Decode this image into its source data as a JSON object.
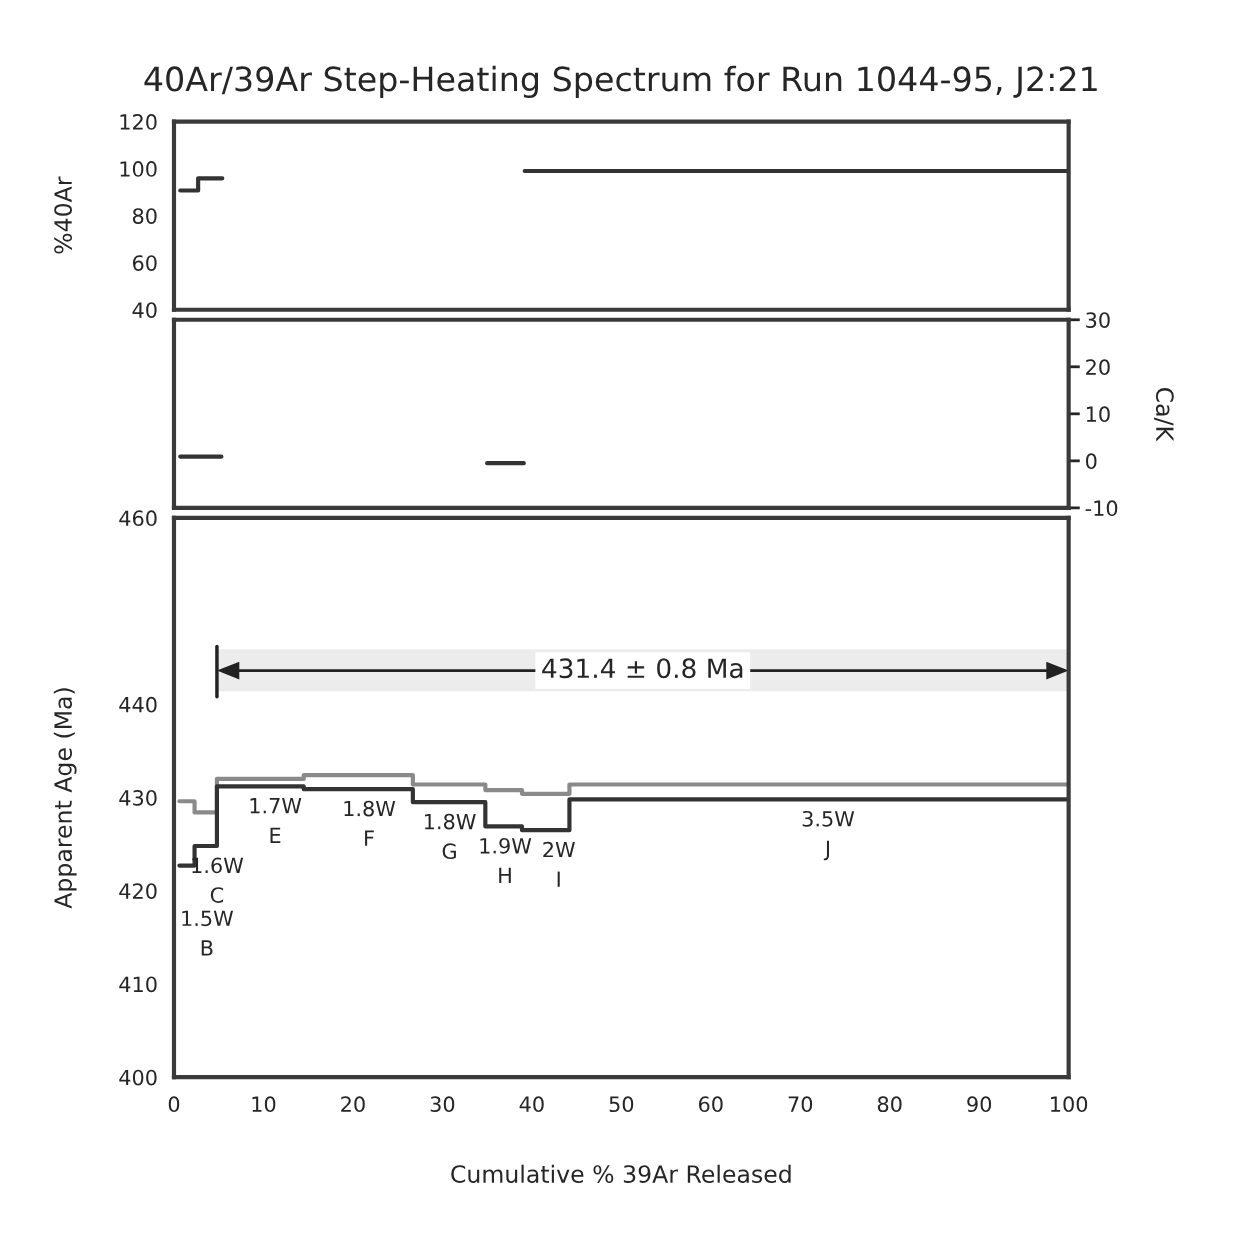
{
  "chart_data": [
    {
      "type": "step",
      "title": "40Ar/39Ar Step-Heating Spectrum for Run 1044-95, J2:21",
      "ylabel": "%40Ar",
      "xlim": [
        0,
        100
      ],
      "xticks": [
        0,
        10,
        20,
        30,
        40,
        50,
        60,
        70,
        80,
        90,
        100
      ],
      "ylim": [
        40,
        120
      ],
      "yticks": [
        40,
        60,
        80,
        100,
        120
      ],
      "tick_labels": "y",
      "series": [
        {
          "color": "#333333",
          "x": [
            0.7,
            2.7,
            5.4,
            39.2,
            100
          ],
          "values": [
            90.7,
            95.9,
            null,
            99.0,
            99.0
          ]
        }
      ]
    },
    {
      "type": "step",
      "ylabel": "Ca/K",
      "xlim": [
        0,
        100
      ],
      "xticks": [
        0,
        10,
        20,
        30,
        40,
        50,
        60,
        70,
        80,
        90,
        100
      ],
      "ylim": [
        -10,
        30
      ],
      "yticks": [
        -10,
        0,
        10,
        20,
        30
      ],
      "tick_labels": "y",
      "series": [
        {
          "color": "#333333",
          "x": [
            0.7,
            5.3,
            35.0,
            39.1
          ],
          "values": [
            0.9,
            null,
            -0.5,
            -0.5
          ]
        }
      ]
    },
    {
      "type": "step",
      "xlabel": "Cumulative % 39Ar Released",
      "ylabel": "Apparent Age (Ma)",
      "xlim": [
        0,
        100
      ],
      "xticks": [
        0,
        10,
        20,
        30,
        40,
        50,
        60,
        70,
        80,
        90,
        100
      ],
      "ylim": [
        400,
        460
      ],
      "yticks": [
        400,
        410,
        420,
        430,
        440,
        460
      ],
      "series": [
        {
          "color": "#8a8a8a",
          "x": [
            0.6,
            2.3,
            4.8,
            14.5,
            26.7,
            34.8,
            38.9,
            44.2,
            100
          ],
          "values": [
            429.6,
            428.4,
            432.0,
            432.4,
            431.4,
            430.8,
            430.4,
            431.4,
            431.4
          ]
        },
        {
          "color": "#333333",
          "x": [
            0.6,
            2.3,
            4.8,
            14.5,
            26.7,
            34.8,
            38.9,
            44.2,
            100
          ],
          "values": [
            422.7,
            424.8,
            431.2,
            430.9,
            429.5,
            426.9,
            426.5,
            429.8,
            429.8
          ]
        }
      ],
      "bands": [
        {
          "axis": "x",
          "from": 4.8,
          "to": 100,
          "label": "431.4 ± 0.8 Ma",
          "color": "#ececec"
        }
      ],
      "annotations": [
        {
          "text": "1.5W\nB",
          "x": 1.5,
          "y": 422.7
        },
        {
          "text": "1.6W\nC",
          "x": 4.8,
          "y": 424.8
        },
        {
          "text": "1.7W\nE",
          "x": 11.3,
          "y": 431.2
        },
        {
          "text": "1.8W\nF",
          "x": 21.8,
          "y": 430.9
        },
        {
          "text": "1.8W\nG",
          "x": 30.8,
          "y": 429.5
        },
        {
          "text": "1.9W\nH",
          "x": 37.0,
          "y": 426.9
        },
        {
          "text": "2W\nI",
          "x": 43.0,
          "y": 426.5
        },
        {
          "text": "3.5W\nJ",
          "x": 73.1,
          "y": 429.8
        }
      ]
    }
  ]
}
